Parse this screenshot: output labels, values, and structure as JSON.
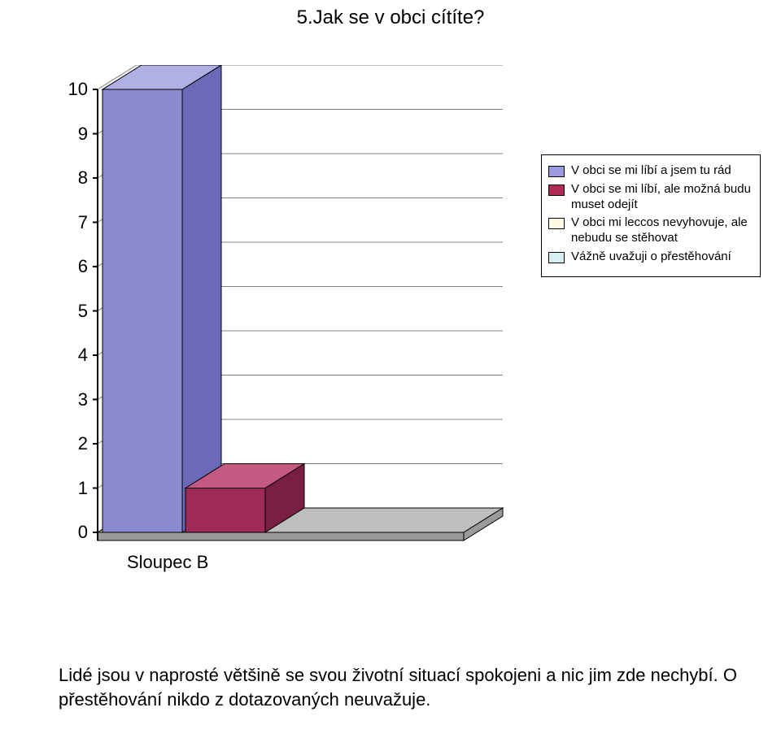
{
  "title": "5.Jak se v obci cítíte?",
  "chart": {
    "type": "bar",
    "x_category_label": "Sloupec B",
    "y": {
      "min": 0,
      "max": 10,
      "ticks": [
        0,
        1,
        2,
        3,
        4,
        5,
        6,
        7,
        8,
        9,
        10
      ]
    },
    "series": [
      {
        "label": "V obci se mi líbí a jsem tu rád",
        "value": 10,
        "fill": "#8a8ad0",
        "side_fill": "#6a6ab8",
        "top_fill": "#b0b0e4"
      },
      {
        "label": "V obci se mi líbí, ale možná budu muset odejít",
        "value": 1,
        "fill": "#a02a56",
        "side_fill": "#7a1f42",
        "top_fill": "#c45a82"
      },
      {
        "label": "V obci mi leccos nevyhovuje, ale nebudu se stěhovat",
        "value": 0,
        "fill": "#fffbe0",
        "side_fill": "#e6e2c8",
        "top_fill": "#fffef0"
      },
      {
        "label": "Vážně uvažuji o přestěhování",
        "value": 0,
        "fill": "#d6f0f0",
        "side_fill": "#b8d8d8",
        "top_fill": "#e8f8f8"
      }
    ],
    "legend_swatches": [
      "#9a9ae0",
      "#b02a56",
      "#fffbe0",
      "#d6f0f0"
    ],
    "background": "#ffffff",
    "floor_fill": "#bfbfbf",
    "floor_side": "#9a9a9a",
    "grid_color": "#808080",
    "axis_color": "#000000",
    "label_fontsize": 22,
    "title_fontsize": 24,
    "legend_fontsize": 15
  },
  "bottom_paragraph": "Lidé jsou v naprosté většině se svou životní situací spokojeni a nic jim zde nechybí. O přestěhování nikdo z dotazovaných neuvažuje."
}
